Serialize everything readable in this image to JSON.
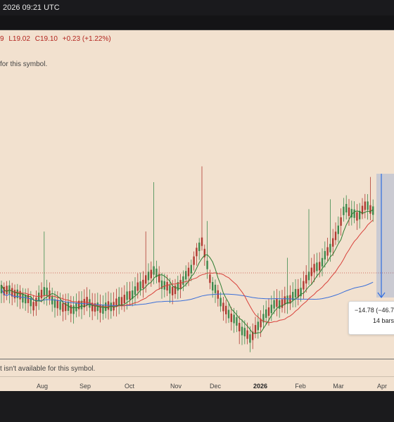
{
  "header": {
    "datetime": "2026 09:21 UTC"
  },
  "legend": {
    "h": "9",
    "l": "L19.02",
    "c": "C19.10",
    "change": "+0.23 (+1.22%)"
  },
  "messages": {
    "top": "for this symbol.",
    "bottom": "t isn't available for this symbol."
  },
  "xaxis": [
    {
      "label": "Aug",
      "bold": false
    },
    {
      "label": "Sep",
      "bold": false
    },
    {
      "label": "Oct",
      "bold": false
    },
    {
      "label": "Nov",
      "bold": false
    },
    {
      "label": "Dec",
      "bold": false
    },
    {
      "label": "2026",
      "bold": true
    },
    {
      "label": "Feb",
      "bold": false
    },
    {
      "label": "Mar",
      "bold": false
    },
    {
      "label": "Apr",
      "bold": false
    }
  ],
  "measure": {
    "line1": "−14.78 (−46.7",
    "line2": "14 bars"
  },
  "colors": {
    "up": "#3e8a4e",
    "down": "#b13a32",
    "ma_fast": "#2e7d32",
    "ma_mid": "#d8403a",
    "ma_slow": "#3b6fd9",
    "measure": "#2f6de0"
  }
}
